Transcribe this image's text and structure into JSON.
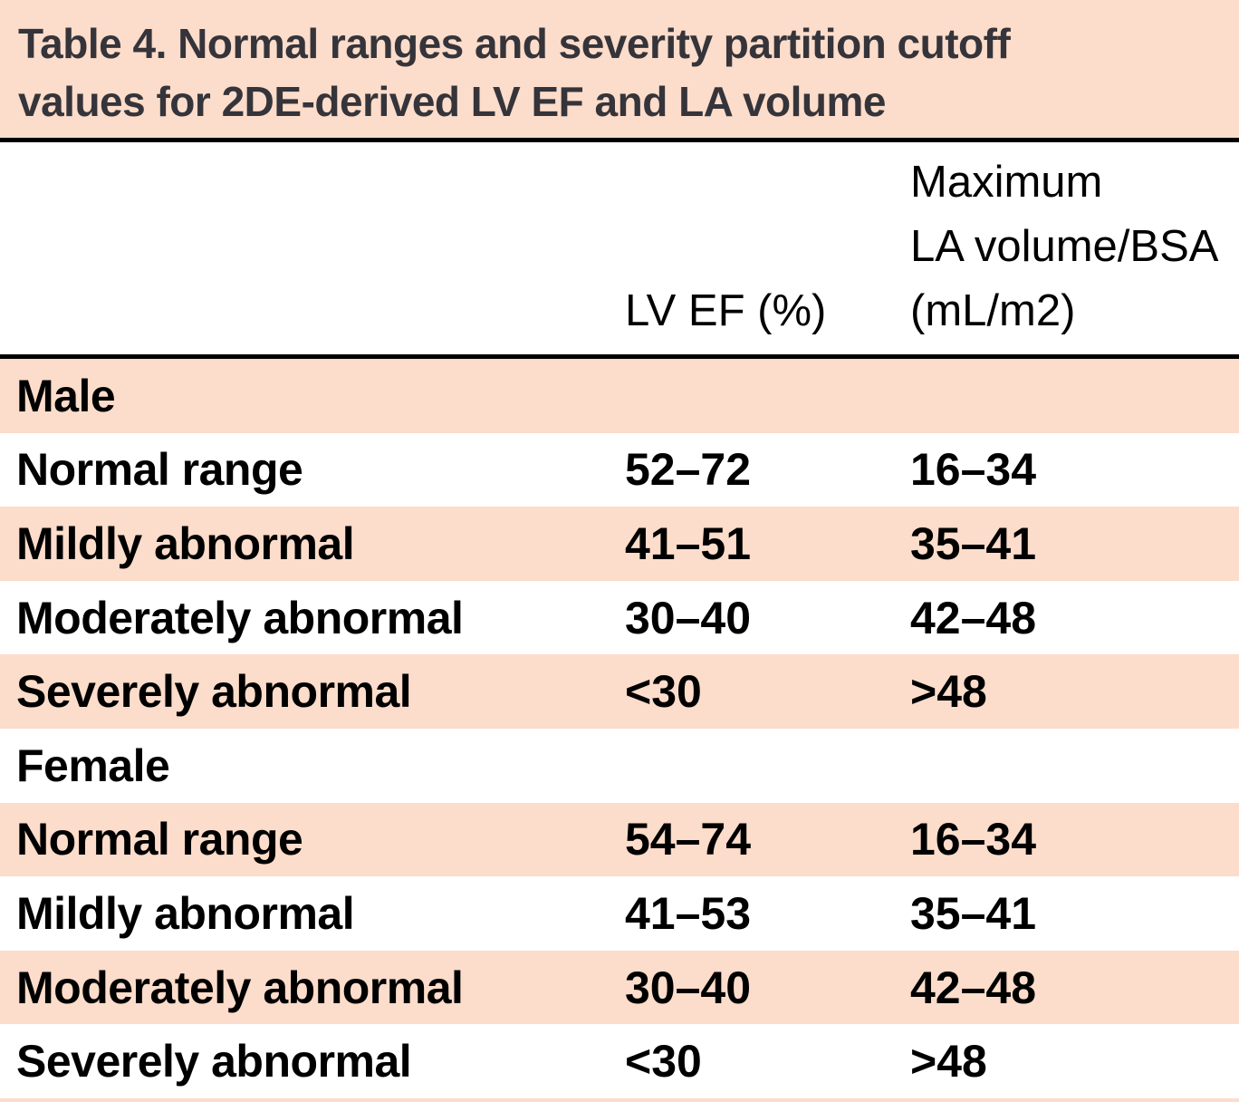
{
  "table": {
    "title_lines": [
      "Table 4. Normal ranges and severity partition cutoff",
      "values for 2DE-derived LV EF and LA volume"
    ],
    "columns": {
      "row_header_label": "",
      "lvef_label": "LV EF (%)",
      "la_volume_label_lines": [
        "Maximum",
        "LA volume/BSA",
        "(mL/m2)"
      ]
    },
    "rows": [
      {
        "label": "Male",
        "lvef": "",
        "la_volume": ""
      },
      {
        "label": "Normal range",
        "lvef": "52–72",
        "la_volume": "16–34"
      },
      {
        "label": "Mildly abnormal",
        "lvef": "41–51",
        "la_volume": "35–41"
      },
      {
        "label": "Moderately abnormal",
        "lvef": "30–40",
        "la_volume": "42–48"
      },
      {
        "label": "Severely abnormal",
        "lvef": "<30",
        "la_volume": ">48"
      },
      {
        "label": "Female",
        "lvef": "",
        "la_volume": ""
      },
      {
        "label": "Normal range",
        "lvef": "54–74",
        "la_volume": "16–34"
      },
      {
        "label": "Mildly abnormal",
        "lvef": "41–53",
        "la_volume": "35–41"
      },
      {
        "label": "Moderately abnormal",
        "lvef": "30–40",
        "la_volume": "42–48"
      },
      {
        "label": "Severely abnormal",
        "lvef": "<30",
        "la_volume": ">48"
      }
    ],
    "colors": {
      "shaded_row_bg": "#fcdcca",
      "plain_row_bg": "#ffffff",
      "title_text": "#35343a",
      "body_text": "#000000",
      "rule": "#000000"
    }
  }
}
